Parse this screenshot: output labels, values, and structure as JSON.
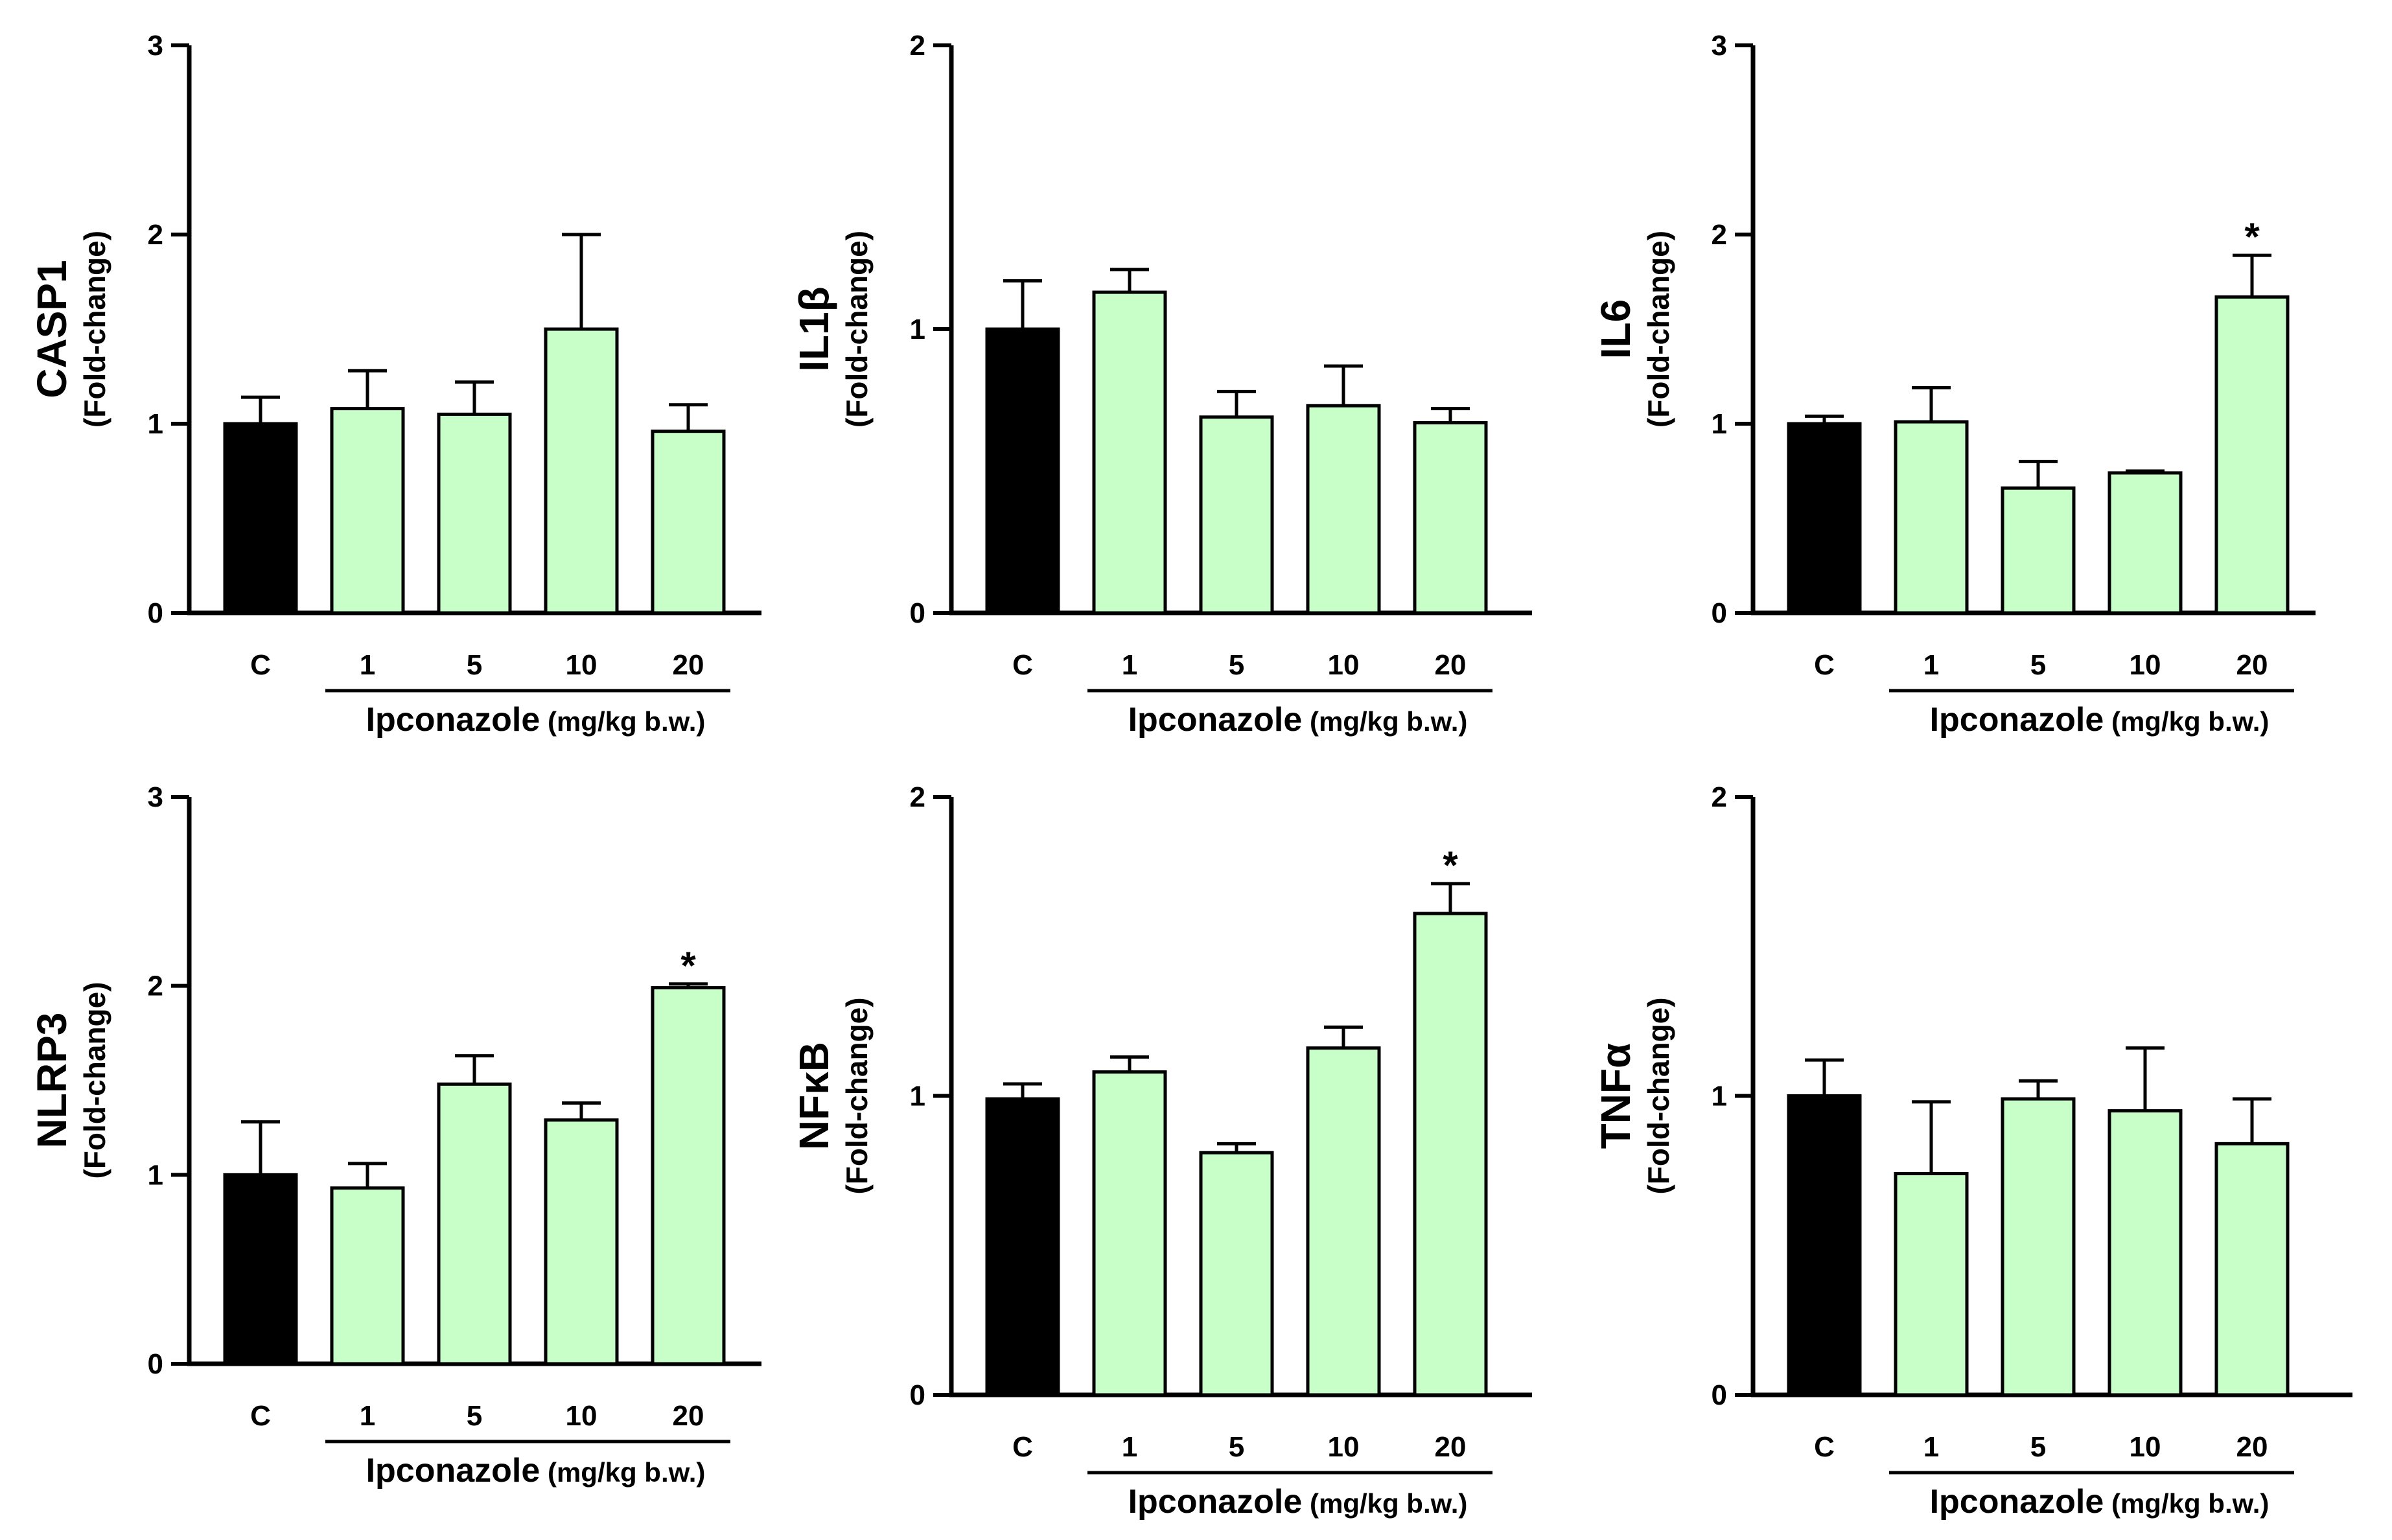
{
  "figure": {
    "fold_label": "(Fold-change)",
    "x_group_title": "Ipconazole",
    "x_group_unit": "(mg/kg b.w.)",
    "colors": {
      "control": "#000000",
      "treated": "#c8ffc8",
      "stroke": "#000000"
    }
  },
  "chart_data": [
    {
      "type": "bar",
      "title": "CASP1",
      "ylabel": "CASP1 (Fold-change)",
      "xlabel": "Ipconazole (mg/kg b.w.)",
      "categories": [
        "C",
        "1",
        "5",
        "10",
        "20"
      ],
      "values": [
        1.0,
        1.08,
        1.05,
        1.5,
        0.96
      ],
      "errors": [
        0.14,
        0.2,
        0.17,
        0.5,
        0.14
      ],
      "significant": [
        false,
        false,
        false,
        false,
        false
      ],
      "ylim": [
        0,
        3
      ],
      "yticks": [
        0,
        1,
        2,
        3
      ],
      "grid": false
    },
    {
      "type": "bar",
      "title": "IL1β",
      "ylabel": "IL1β (Fold-change)",
      "xlabel": "Ipconazole (mg/kg b.w.)",
      "categories": [
        "C",
        "1",
        "5",
        "10",
        "20"
      ],
      "values": [
        1.0,
        1.13,
        0.69,
        0.73,
        0.67
      ],
      "errors": [
        0.17,
        0.08,
        0.09,
        0.14,
        0.05
      ],
      "significant": [
        false,
        false,
        false,
        false,
        false
      ],
      "ylim": [
        0,
        2
      ],
      "yticks": [
        0,
        1,
        2
      ],
      "grid": false
    },
    {
      "type": "bar",
      "title": "IL6",
      "ylabel": "IL6 (Fold-change)",
      "xlabel": "Ipconazole (mg/kg b.w.)",
      "categories": [
        "C",
        "1",
        "5",
        "10",
        "20"
      ],
      "values": [
        1.0,
        1.01,
        0.66,
        0.74,
        1.67
      ],
      "errors": [
        0.04,
        0.18,
        0.14,
        0.01,
        0.22
      ],
      "significant": [
        false,
        false,
        false,
        false,
        true
      ],
      "ylim": [
        0,
        3
      ],
      "yticks": [
        0,
        1,
        2,
        3
      ],
      "grid": false
    },
    {
      "type": "bar",
      "title": "NLRP3",
      "ylabel": "NLRP3 (Fold-change)",
      "xlabel": "Ipconazole (mg/kg b.w.)",
      "categories": [
        "C",
        "1",
        "5",
        "10",
        "20"
      ],
      "values": [
        1.0,
        0.93,
        1.48,
        1.29,
        1.99
      ],
      "errors": [
        0.28,
        0.13,
        0.15,
        0.09,
        0.02
      ],
      "significant": [
        false,
        false,
        false,
        false,
        true
      ],
      "ylim": [
        0,
        3
      ],
      "yticks": [
        0,
        1,
        2,
        3
      ],
      "grid": false
    },
    {
      "type": "bar",
      "title": "NFκB",
      "ylabel": "NFκB (Fold-change)",
      "xlabel": "Ipconazole (mg/kg b.w.)",
      "categories": [
        "C",
        "1",
        "5",
        "10",
        "20"
      ],
      "values": [
        0.99,
        1.08,
        0.81,
        1.16,
        1.61
      ],
      "errors": [
        0.05,
        0.05,
        0.03,
        0.07,
        0.1
      ],
      "significant": [
        false,
        false,
        false,
        false,
        true
      ],
      "ylim": [
        0,
        2
      ],
      "yticks": [
        0,
        1,
        2
      ],
      "grid": false
    },
    {
      "type": "bar",
      "title": "TNFα",
      "ylabel": "TNFα (Fold-change)",
      "xlabel": "Ipconazole (mg/kg b.w.)",
      "categories": [
        "C",
        "1",
        "5",
        "10",
        "20"
      ],
      "values": [
        1.0,
        0.74,
        0.99,
        0.95,
        0.84
      ],
      "errors": [
        0.12,
        0.24,
        0.06,
        0.21,
        0.15
      ],
      "significant": [
        false,
        false,
        false,
        false,
        false
      ],
      "ylim": [
        0,
        2
      ],
      "yticks": [
        0,
        1,
        2
      ],
      "grid": false
    }
  ]
}
